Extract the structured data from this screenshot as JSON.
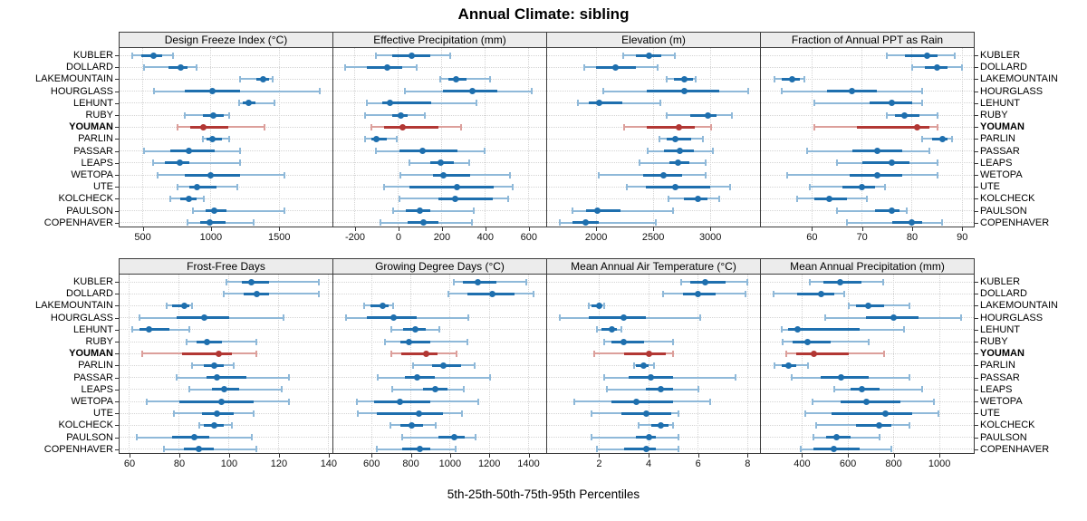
{
  "chart_data": {
    "type": "dotplot",
    "title": "Annual Climate: sibling",
    "caption": "5th-25th-50th-75th-95th Percentiles",
    "percentiles": [
      5,
      25,
      50,
      75,
      95
    ],
    "stations": [
      "KUBLER",
      "DOLLARD",
      "LAKEMOUNTAIN",
      "HOURGLASS",
      "LEHUNT",
      "RUBY",
      "YOUMAN",
      "PARLIN",
      "PASSAR",
      "LEAPS",
      "WETOPA",
      "UTE",
      "KOLCHECK",
      "PAULSON",
      "COPENHAVER"
    ],
    "highlighted_station": "YOUMAN",
    "legend_position": "none",
    "grid": "dotted",
    "colors": {
      "series_dark": "#1e6fae",
      "series_light": "#8fb9d9",
      "highlight_dark": "#b23734",
      "highlight_light": "#dc9f9b",
      "grid": "#d4d4d4",
      "strip_bg": "#ececec",
      "panel_border": "#3c3c3c",
      "text": "#000000",
      "tick": "#333333"
    },
    "panels": [
      {
        "title": "Design Freeze Index (°C)",
        "grid_row": 0,
        "grid_col": 0,
        "xlim": [
          330,
          1890
        ],
        "ticks": [
          500,
          1000,
          1500
        ],
        "values": [
          [
            420,
            490,
            580,
            645,
            720
          ],
          [
            510,
            690,
            780,
            830,
            895
          ],
          [
            1215,
            1335,
            1380,
            1425,
            1455
          ],
          [
            580,
            810,
            1010,
            1210,
            1795
          ],
          [
            1205,
            1235,
            1275,
            1325,
            1465
          ],
          [
            805,
            940,
            1015,
            1095,
            1135
          ],
          [
            755,
            845,
            945,
            1125,
            1390
          ],
          [
            940,
            970,
            1010,
            1080,
            1135
          ],
          [
            510,
            700,
            835,
            1030,
            1215
          ],
          [
            575,
            665,
            770,
            840,
            1215
          ],
          [
            610,
            805,
            1000,
            1210,
            1540
          ],
          [
            755,
            840,
            900,
            1040,
            1190
          ],
          [
            705,
            775,
            835,
            895,
            950
          ],
          [
            865,
            960,
            1025,
            1115,
            1540
          ],
          [
            825,
            920,
            990,
            1105,
            1315
          ]
        ]
      },
      {
        "title": "Effective Precipitation (mm)",
        "grid_row": 0,
        "grid_col": 1,
        "xlim": [
          -300,
          680
        ],
        "ticks": [
          -200,
          0,
          200,
          400,
          600
        ],
        "values": [
          [
            -105,
            -30,
            60,
            145,
            240
          ],
          [
            -245,
            -145,
            -50,
            15,
            85
          ],
          [
            190,
            230,
            265,
            315,
            420
          ],
          [
            30,
            205,
            340,
            455,
            615
          ],
          [
            -145,
            -75,
            -40,
            150,
            360
          ],
          [
            -155,
            -30,
            10,
            40,
            120
          ],
          [
            -125,
            -65,
            20,
            185,
            290
          ],
          [
            -155,
            -125,
            -100,
            -55,
            -10
          ],
          [
            -105,
            5,
            110,
            270,
            395
          ],
          [
            50,
            145,
            195,
            255,
            325
          ],
          [
            10,
            160,
            205,
            330,
            515
          ],
          [
            -65,
            50,
            270,
            440,
            525
          ],
          [
            5,
            185,
            260,
            435,
            505
          ],
          [
            -25,
            35,
            100,
            145,
            345
          ],
          [
            -85,
            40,
            115,
            185,
            340
          ]
        ]
      },
      {
        "title": "Elevation (m)",
        "grid_row": 0,
        "grid_col": 2,
        "xlim": [
          1570,
          3435
        ],
        "ticks": [
          2000,
          2500,
          3000
        ],
        "values": [
          [
            2240,
            2345,
            2460,
            2570,
            2690
          ],
          [
            1895,
            2000,
            2170,
            2345,
            2535
          ],
          [
            2615,
            2685,
            2775,
            2845,
            2870
          ],
          [
            2065,
            2445,
            2770,
            3080,
            3330
          ],
          [
            1840,
            1935,
            2025,
            2230,
            2560
          ],
          [
            2615,
            2825,
            2980,
            3055,
            3190
          ],
          [
            2245,
            2445,
            2725,
            2865,
            3005
          ],
          [
            2555,
            2615,
            2690,
            2835,
            2935
          ],
          [
            2450,
            2590,
            2735,
            2855,
            3025
          ],
          [
            2380,
            2645,
            2720,
            2815,
            2960
          ],
          [
            2025,
            2410,
            2590,
            2750,
            2960
          ],
          [
            2265,
            2435,
            2690,
            3000,
            3170
          ],
          [
            2630,
            2765,
            2895,
            2975,
            3080
          ],
          [
            1790,
            1910,
            2010,
            2210,
            2670
          ],
          [
            1685,
            1790,
            1910,
            2025,
            2525
          ]
        ]
      },
      {
        "title": "Fraction of Annual PPT as Rain",
        "grid_row": 0,
        "grid_col": 3,
        "xlim": [
          49.8,
          92.3
        ],
        "ticks": [
          60,
          70,
          80,
          90
        ],
        "values": [
          [
            75,
            78.5,
            83,
            85,
            88.5
          ],
          [
            80,
            82.5,
            85,
            87,
            90
          ],
          [
            52.5,
            54,
            56,
            57.5,
            58.5
          ],
          [
            54,
            63,
            68,
            73,
            82
          ],
          [
            60.5,
            71.5,
            76,
            80,
            82
          ],
          [
            75,
            76.5,
            78.5,
            81.5,
            85
          ],
          [
            60.5,
            69,
            81,
            83.5,
            85
          ],
          [
            82,
            84,
            86,
            87,
            88
          ],
          [
            59,
            68,
            73,
            78,
            83.5
          ],
          [
            65,
            70,
            76,
            79.5,
            85
          ],
          [
            55,
            67.5,
            73,
            78,
            85
          ],
          [
            59.5,
            66,
            70,
            72.5,
            74.5
          ],
          [
            57,
            60.5,
            63.5,
            67,
            71
          ],
          [
            65,
            72.5,
            76,
            77.5,
            79
          ],
          [
            67,
            76,
            80,
            82,
            86
          ]
        ]
      },
      {
        "title": "Frost-Free Days",
        "grid_row": 1,
        "grid_col": 0,
        "xlim": [
          56,
          141.5
        ],
        "ticks": [
          60,
          80,
          100,
          120,
          140
        ],
        "values": [
          [
            99,
            105,
            109,
            116,
            136
          ],
          [
            98,
            106,
            111,
            116,
            136
          ],
          [
            75,
            77,
            82,
            84,
            85
          ],
          [
            64,
            79,
            90,
            100,
            122
          ],
          [
            61,
            64,
            68,
            76,
            84
          ],
          [
            83,
            87,
            91,
            97,
            111
          ],
          [
            65,
            81,
            96,
            101,
            111
          ],
          [
            85,
            90,
            94,
            98,
            102
          ],
          [
            79,
            91,
            95,
            107,
            124
          ],
          [
            84,
            93,
            98,
            104,
            121
          ],
          [
            67,
            80,
            97,
            110,
            124
          ],
          [
            78,
            89,
            95,
            102,
            110
          ],
          [
            88,
            90,
            94,
            98,
            101
          ],
          [
            63,
            77,
            86,
            92,
            109
          ],
          [
            74,
            82,
            88,
            94,
            111
          ]
        ]
      },
      {
        "title": "Growing Degree Days (°C)",
        "grid_row": 1,
        "grid_col": 1,
        "xlim": [
          405,
          1490
        ],
        "ticks": [
          600,
          800,
          1000,
          1200,
          1400
        ],
        "values": [
          [
            1020,
            1065,
            1140,
            1235,
            1390
          ],
          [
            990,
            1090,
            1215,
            1330,
            1425
          ],
          [
            560,
            595,
            655,
            685,
            710
          ],
          [
            470,
            575,
            710,
            830,
            1095
          ],
          [
            700,
            760,
            825,
            875,
            945
          ],
          [
            670,
            745,
            790,
            900,
            1090
          ],
          [
            700,
            750,
            880,
            935,
            1035
          ],
          [
            810,
            910,
            965,
            1055,
            1125
          ],
          [
            630,
            770,
            830,
            920,
            1205
          ],
          [
            705,
            860,
            925,
            985,
            1070
          ],
          [
            525,
            615,
            745,
            900,
            1145
          ],
          [
            530,
            625,
            840,
            965,
            1060
          ],
          [
            695,
            745,
            805,
            860,
            925
          ],
          [
            755,
            940,
            1020,
            1075,
            1130
          ],
          [
            625,
            755,
            845,
            900,
            1030
          ]
        ]
      },
      {
        "title": "Mean Annual Air Temperature (°C)",
        "grid_row": 1,
        "grid_col": 2,
        "xlim": [
          -0.1,
          8.5
        ],
        "ticks": [
          2,
          4,
          6,
          8
        ],
        "values": [
          [
            5.3,
            5.7,
            6.3,
            7.1,
            8.0
          ],
          [
            4.6,
            5.4,
            6.0,
            6.7,
            7.9
          ],
          [
            1.6,
            1.7,
            2.0,
            2.1,
            2.2
          ],
          [
            0.4,
            1.6,
            3.0,
            3.9,
            6.1
          ],
          [
            1.9,
            2.1,
            2.5,
            2.7,
            2.9
          ],
          [
            2.2,
            2.5,
            3.0,
            3.8,
            5.0
          ],
          [
            1.8,
            3.0,
            4.0,
            4.7,
            5.0
          ],
          [
            3.4,
            3.5,
            3.8,
            4.0,
            4.2
          ],
          [
            2.2,
            3.2,
            4.1,
            5.0,
            7.5
          ],
          [
            2.3,
            3.9,
            4.5,
            5.0,
            6.0
          ],
          [
            1.0,
            2.5,
            3.5,
            5.0,
            6.5
          ],
          [
            1.7,
            2.9,
            3.9,
            4.9,
            5.2
          ],
          [
            3.6,
            4.1,
            4.5,
            4.8,
            5.0
          ],
          [
            1.7,
            3.5,
            4.0,
            4.3,
            5.2
          ],
          [
            1.9,
            3.0,
            3.9,
            4.3,
            5.2
          ]
        ]
      },
      {
        "title": "Mean Annual Precipitation (mm)",
        "grid_row": 1,
        "grid_col": 3,
        "xlim": [
          220,
          1150
        ],
        "ticks": [
          400,
          600,
          800,
          1000
        ],
        "values": [
          [
            435,
            495,
            565,
            660,
            755
          ],
          [
            275,
            380,
            485,
            540,
            585
          ],
          [
            605,
            635,
            690,
            760,
            870
          ],
          [
            500,
            680,
            800,
            910,
            1095
          ],
          [
            310,
            340,
            380,
            650,
            845
          ],
          [
            315,
            360,
            425,
            525,
            690
          ],
          [
            330,
            375,
            450,
            605,
            760
          ],
          [
            280,
            310,
            340,
            375,
            425
          ],
          [
            355,
            480,
            570,
            690,
            870
          ],
          [
            540,
            610,
            660,
            740,
            925
          ],
          [
            445,
            570,
            680,
            830,
            975
          ],
          [
            415,
            530,
            765,
            880,
            995
          ],
          [
            460,
            635,
            735,
            790,
            870
          ],
          [
            450,
            505,
            550,
            610,
            740
          ],
          [
            395,
            450,
            540,
            650,
            790
          ]
        ]
      }
    ]
  }
}
